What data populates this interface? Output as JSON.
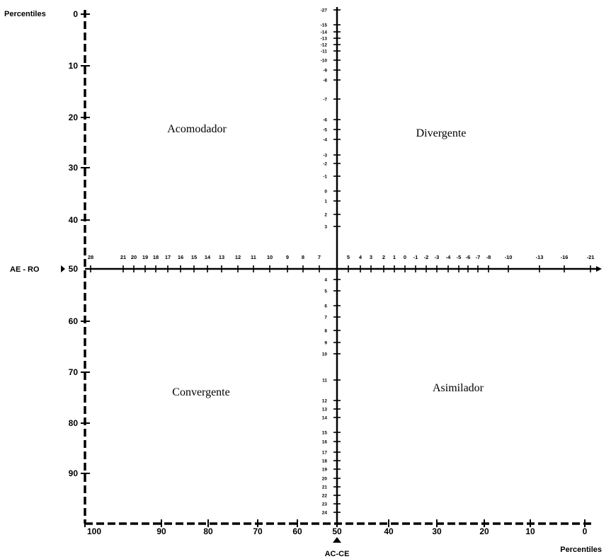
{
  "labels": {
    "left_axis_title": "Percentiles",
    "bottom_axis_title": "Percentiles",
    "horizontal_axis_label": "AE - RO",
    "vertical_axis_label": "AC-CE"
  },
  "quadrants": {
    "top_left": "Acomodador",
    "top_right": "Divergente",
    "bottom_left": "Convergente",
    "bottom_right": "Asimilador"
  },
  "left_scale_labels": [
    "0",
    "10",
    "20",
    "30",
    "40",
    "50",
    "60",
    "70",
    "80",
    "90"
  ],
  "bottom_scale_labels": [
    "100",
    "90",
    "80",
    "70",
    "60",
    "50",
    "40",
    "30",
    "20",
    "10",
    "0"
  ],
  "horizontal_axis_ticks": [
    "28",
    "21",
    "20",
    "19",
    "18",
    "17",
    "16",
    "15",
    "14",
    "13",
    "12",
    "11",
    "10",
    "9",
    "8",
    "7",
    "5",
    "4",
    "3",
    "2",
    "1",
    "0",
    "-1",
    "-2",
    "-3",
    "-4",
    "-5",
    "-6",
    "-7",
    "-8",
    "-10",
    "-13",
    "-16",
    "-21"
  ],
  "vertical_axis_ticks_upper": [
    "-27",
    "-15",
    "-14",
    "-13",
    "-12",
    "-11",
    "-10",
    "-9",
    "-8",
    "-7",
    "-6",
    "-5",
    "-4",
    "-3",
    "-2",
    "-1",
    "0",
    "1",
    "2",
    "3"
  ],
  "vertical_axis_ticks_lower": [
    "4",
    "5",
    "6",
    "7",
    "8",
    "9",
    "10",
    "11",
    "12",
    "13",
    "14",
    "15",
    "16",
    "17",
    "18",
    "19",
    "20",
    "21",
    "22",
    "23",
    "24"
  ]
}
